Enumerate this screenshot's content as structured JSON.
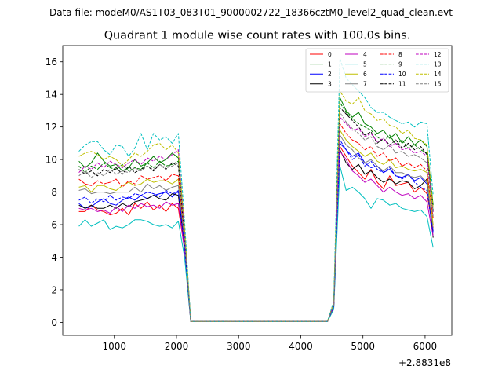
{
  "figure": {
    "suptitle": "Data file: modeM0/AS1T03_083T01_9000002722_18366cztM0_level2_quad_clean.evt"
  },
  "chart_data": {
    "type": "line",
    "title": "Quadrant 1 module wise count rates with 100.0s bins.",
    "xlabel": "",
    "ylabel": "",
    "x_offset_label": "+2.8831e8",
    "xlim": [
      170,
      6430
    ],
    "ylim": [
      -0.8,
      17.0
    ],
    "xticks": [
      1000,
      2000,
      3000,
      4000,
      5000,
      6000
    ],
    "xtick_labels": [
      "1000",
      "2000",
      "3000",
      "4000",
      "5000",
      "6000"
    ],
    "yticks": [
      0,
      2,
      4,
      6,
      8,
      10,
      12,
      14,
      16
    ],
    "ytick_labels": [
      "0",
      "2",
      "4",
      "6",
      "8",
      "10",
      "12",
      "14",
      "16"
    ],
    "grid": false,
    "legend_position": "top-right",
    "legend_columns": 4,
    "x": [
      430,
      530,
      630,
      730,
      830,
      930,
      1030,
      1130,
      1230,
      1330,
      1430,
      1530,
      1630,
      1730,
      1830,
      1930,
      2030,
      2130,
      2230,
      2330,
      2430,
      2530,
      2630,
      2730,
      2830,
      2930,
      3030,
      3130,
      3230,
      3330,
      3430,
      3530,
      3630,
      3730,
      3830,
      3930,
      4030,
      4130,
      4230,
      4330,
      4430,
      4530,
      4630,
      4730,
      4830,
      4930,
      5030,
      5130,
      5230,
      5330,
      5430,
      5530,
      5630,
      5730,
      5830,
      5930,
      6030,
      6130
    ],
    "series": [
      {
        "name": "0",
        "color": "#ff0000",
        "dash": "solid",
        "values": [
          6.8,
          6.8,
          7.2,
          6.9,
          6.8,
          6.6,
          6.7,
          7.0,
          6.6,
          7.3,
          7.0,
          7.4,
          6.9,
          7.2,
          6.8,
          7.3,
          7.0,
          4.5,
          0.05,
          0.05,
          0.05,
          0.05,
          0.05,
          0.05,
          0.05,
          0.05,
          0.05,
          0.05,
          0.05,
          0.05,
          0.05,
          0.05,
          0.05,
          0.05,
          0.05,
          0.05,
          0.05,
          0.05,
          0.05,
          0.05,
          0.05,
          1.0,
          10.8,
          10.2,
          9.6,
          9.2,
          8.8,
          9.4,
          8.6,
          8.2,
          9.0,
          8.4,
          8.5,
          8.6,
          8.0,
          8.3,
          7.9,
          5.8
        ]
      },
      {
        "name": "1",
        "color": "#008000",
        "dash": "solid",
        "values": [
          9.9,
          9.5,
          9.8,
          10.4,
          9.9,
          9.6,
          9.7,
          9.3,
          9.5,
          10.0,
          9.6,
          9.8,
          10.2,
          9.8,
          10.0,
          10.4,
          10.1,
          5.5,
          0.05,
          0.05,
          0.05,
          0.05,
          0.05,
          0.05,
          0.05,
          0.05,
          0.05,
          0.05,
          0.05,
          0.05,
          0.05,
          0.05,
          0.05,
          0.05,
          0.05,
          0.05,
          0.05,
          0.05,
          0.05,
          0.05,
          0.05,
          1.2,
          13.8,
          13.0,
          12.6,
          12.9,
          12.2,
          12.0,
          11.6,
          11.8,
          11.3,
          11.6,
          11.0,
          11.4,
          10.9,
          11.2,
          10.8,
          7.2
        ]
      },
      {
        "name": "2",
        "color": "#0000ff",
        "dash": "solid",
        "values": [
          7.3,
          7.0,
          7.1,
          7.4,
          7.6,
          7.3,
          7.2,
          7.5,
          7.7,
          7.5,
          7.8,
          7.6,
          7.8,
          7.9,
          8.0,
          7.7,
          8.1,
          4.8,
          0.05,
          0.05,
          0.05,
          0.05,
          0.05,
          0.05,
          0.05,
          0.05,
          0.05,
          0.05,
          0.05,
          0.05,
          0.05,
          0.05,
          0.05,
          0.05,
          0.05,
          0.05,
          0.05,
          0.05,
          0.05,
          0.05,
          0.05,
          1.0,
          11.0,
          10.6,
          10.2,
          10.4,
          9.8,
          9.5,
          9.6,
          9.2,
          9.4,
          9.0,
          8.9,
          9.1,
          8.7,
          8.9,
          8.5,
          5.6
        ]
      },
      {
        "name": "3",
        "color": "#000000",
        "dash": "solid",
        "values": [
          7.2,
          7.0,
          7.2,
          7.0,
          7.0,
          7.2,
          7.0,
          7.3,
          7.1,
          7.4,
          7.5,
          7.6,
          7.8,
          7.6,
          7.5,
          7.9,
          7.8,
          4.6,
          0.05,
          0.05,
          0.05,
          0.05,
          0.05,
          0.05,
          0.05,
          0.05,
          0.05,
          0.05,
          0.05,
          0.05,
          0.05,
          0.05,
          0.05,
          0.05,
          0.05,
          0.05,
          0.05,
          0.05,
          0.05,
          0.05,
          0.05,
          1.0,
          10.6,
          9.8,
          9.4,
          9.7,
          9.1,
          9.3,
          8.9,
          8.6,
          8.8,
          8.5,
          8.7,
          8.6,
          8.2,
          8.4,
          8.8,
          5.2
        ]
      },
      {
        "name": "4",
        "color": "#bf00bf",
        "dash": "solid",
        "values": [
          7.0,
          6.9,
          7.0,
          6.8,
          6.9,
          6.7,
          7.1,
          6.8,
          7.2,
          7.0,
          7.3,
          7.1,
          7.2,
          7.0,
          7.4,
          7.2,
          7.3,
          4.4,
          0.05,
          0.05,
          0.05,
          0.05,
          0.05,
          0.05,
          0.05,
          0.05,
          0.05,
          0.05,
          0.05,
          0.05,
          0.05,
          0.05,
          0.05,
          0.05,
          0.05,
          0.05,
          0.05,
          0.05,
          0.05,
          0.05,
          0.05,
          0.9,
          10.5,
          10.0,
          9.3,
          9.0,
          8.6,
          8.8,
          8.4,
          8.0,
          8.3,
          8.0,
          7.8,
          7.9,
          7.6,
          7.8,
          7.4,
          5.3
        ]
      },
      {
        "name": "5",
        "color": "#00bfbf",
        "dash": "solid",
        "values": [
          5.9,
          6.3,
          5.9,
          6.1,
          6.3,
          5.7,
          5.9,
          5.8,
          6.0,
          6.3,
          6.3,
          6.2,
          6.0,
          5.9,
          6.0,
          5.8,
          6.2,
          4.0,
          0.05,
          0.05,
          0.05,
          0.05,
          0.05,
          0.05,
          0.05,
          0.05,
          0.05,
          0.05,
          0.05,
          0.05,
          0.05,
          0.05,
          0.05,
          0.05,
          0.05,
          0.05,
          0.05,
          0.05,
          0.05,
          0.05,
          0.05,
          0.8,
          9.6,
          8.1,
          8.3,
          8.0,
          7.6,
          7.0,
          7.6,
          7.5,
          7.2,
          7.3,
          7.0,
          6.9,
          6.8,
          6.9,
          6.5,
          4.6
        ]
      },
      {
        "name": "6",
        "color": "#bfbf00",
        "dash": "solid",
        "values": [
          8.3,
          8.4,
          8.0,
          8.4,
          8.4,
          8.2,
          8.1,
          8.4,
          8.6,
          8.4,
          8.5,
          8.8,
          8.6,
          8.7,
          8.7,
          8.5,
          8.8,
          5.0,
          0.05,
          0.05,
          0.05,
          0.05,
          0.05,
          0.05,
          0.05,
          0.05,
          0.05,
          0.05,
          0.05,
          0.05,
          0.05,
          0.05,
          0.05,
          0.05,
          0.05,
          0.05,
          0.05,
          0.05,
          0.05,
          0.05,
          0.05,
          1.0,
          11.8,
          11.2,
          10.8,
          10.5,
          10.2,
          10.4,
          9.9,
          9.7,
          10.0,
          9.5,
          9.6,
          9.4,
          9.3,
          9.4,
          9.2,
          6.0
        ]
      },
      {
        "name": "7",
        "color": "#808080",
        "dash": "solid",
        "values": [
          8.1,
          8.2,
          7.9,
          8.0,
          8.0,
          7.9,
          8.0,
          8.0,
          8.0,
          8.3,
          8.0,
          8.5,
          8.2,
          8.4,
          8.1,
          8.3,
          8.4,
          4.9,
          0.05,
          0.05,
          0.05,
          0.05,
          0.05,
          0.05,
          0.05,
          0.05,
          0.05,
          0.05,
          0.05,
          0.05,
          0.05,
          0.05,
          0.05,
          0.05,
          0.05,
          0.05,
          0.05,
          0.05,
          0.05,
          0.05,
          0.05,
          1.0,
          11.5,
          10.9,
          10.6,
          10.1,
          9.8,
          10.0,
          9.6,
          9.3,
          9.6,
          9.2,
          9.2,
          9.0,
          8.9,
          9.0,
          8.6,
          5.7
        ]
      },
      {
        "name": "8",
        "color": "#ff0000",
        "dash": "dashed",
        "values": [
          8.8,
          8.5,
          8.4,
          8.7,
          8.5,
          8.6,
          8.8,
          8.3,
          8.7,
          8.5,
          9.0,
          8.8,
          8.9,
          9.0,
          8.7,
          9.1,
          9.0,
          5.2,
          0.05,
          0.05,
          0.05,
          0.05,
          0.05,
          0.05,
          0.05,
          0.05,
          0.05,
          0.05,
          0.05,
          0.05,
          0.05,
          0.05,
          0.05,
          0.05,
          0.05,
          0.05,
          0.05,
          0.05,
          0.05,
          0.05,
          0.05,
          1.1,
          12.2,
          11.6,
          11.2,
          11.0,
          10.6,
          10.8,
          10.2,
          10.4,
          9.9,
          10.1,
          9.6,
          9.8,
          9.5,
          9.7,
          9.3,
          6.4
        ]
      },
      {
        "name": "9",
        "color": "#008000",
        "dash": "dashed",
        "values": [
          9.6,
          9.2,
          9.6,
          9.4,
          9.8,
          9.5,
          9.4,
          9.7,
          9.3,
          9.5,
          9.4,
          9.8,
          9.5,
          9.9,
          9.6,
          9.7,
          9.9,
          5.4,
          0.05,
          0.05,
          0.05,
          0.05,
          0.05,
          0.05,
          0.05,
          0.05,
          0.05,
          0.05,
          0.05,
          0.05,
          0.05,
          0.05,
          0.05,
          0.05,
          0.05,
          0.05,
          0.05,
          0.05,
          0.05,
          0.05,
          0.05,
          1.2,
          13.5,
          12.9,
          12.5,
          12.2,
          12.0,
          11.8,
          11.4,
          11.1,
          11.5,
          10.9,
          11.2,
          10.7,
          10.9,
          10.6,
          10.4,
          6.9
        ]
      },
      {
        "name": "10",
        "color": "#0000ff",
        "dash": "dashed",
        "values": [
          7.5,
          7.7,
          7.3,
          7.6,
          7.4,
          7.8,
          7.5,
          7.7,
          7.6,
          7.9,
          7.8,
          8.0,
          7.9,
          7.7,
          8.1,
          7.9,
          8.0,
          4.7,
          0.05,
          0.05,
          0.05,
          0.05,
          0.05,
          0.05,
          0.05,
          0.05,
          0.05,
          0.05,
          0.05,
          0.05,
          0.05,
          0.05,
          0.05,
          0.05,
          0.05,
          0.05,
          0.05,
          0.05,
          0.05,
          0.05,
          0.05,
          1.0,
          11.2,
          10.6,
          10.0,
          10.3,
          9.6,
          9.9,
          9.4,
          9.2,
          9.5,
          9.0,
          8.8,
          9.1,
          8.6,
          8.3,
          8.1,
          5.5
        ]
      },
      {
        "name": "11",
        "color": "#000000",
        "dash": "dashed",
        "values": [
          9.4,
          9.1,
          9.3,
          9.0,
          9.4,
          9.2,
          9.5,
          9.1,
          9.6,
          9.2,
          9.4,
          9.6,
          9.3,
          9.7,
          9.4,
          9.8,
          9.6,
          5.3,
          0.05,
          0.05,
          0.05,
          0.05,
          0.05,
          0.05,
          0.05,
          0.05,
          0.05,
          0.05,
          0.05,
          0.05,
          0.05,
          0.05,
          0.05,
          0.05,
          0.05,
          0.05,
          0.05,
          0.05,
          0.05,
          0.05,
          0.05,
          1.1,
          13.2,
          12.8,
          12.4,
          12.0,
          11.5,
          11.7,
          11.0,
          11.3,
          10.9,
          11.2,
          10.7,
          11.0,
          10.6,
          10.8,
          10.3,
          6.8
        ]
      },
      {
        "name": "12",
        "color": "#bf00bf",
        "dash": "dashed",
        "values": [
          9.2,
          9.6,
          9.4,
          9.8,
          9.5,
          9.9,
          9.7,
          9.5,
          9.8,
          10.0,
          9.7,
          10.1,
          9.9,
          10.2,
          10.0,
          10.3,
          10.6,
          5.6,
          0.05,
          0.05,
          0.05,
          0.05,
          0.05,
          0.05,
          0.05,
          0.05,
          0.05,
          0.05,
          0.05,
          0.05,
          0.05,
          0.05,
          0.05,
          0.05,
          0.05,
          0.05,
          0.05,
          0.05,
          0.05,
          0.05,
          0.05,
          1.1,
          12.6,
          12.2,
          11.8,
          11.9,
          11.4,
          11.6,
          11.1,
          11.3,
          10.8,
          11.0,
          10.6,
          10.7,
          10.4,
          10.5,
          10.2,
          6.7
        ]
      },
      {
        "name": "13",
        "color": "#00bfbf",
        "dash": "dashed",
        "values": [
          10.5,
          10.9,
          11.1,
          11.1,
          10.6,
          10.3,
          10.9,
          10.8,
          10.2,
          10.7,
          11.6,
          10.6,
          11.6,
          11.2,
          11.4,
          11.0,
          11.6,
          6.2,
          0.05,
          0.05,
          0.05,
          0.05,
          0.05,
          0.05,
          0.05,
          0.05,
          0.05,
          0.05,
          0.05,
          0.05,
          0.05,
          0.05,
          0.05,
          0.05,
          0.05,
          0.05,
          0.05,
          0.05,
          0.05,
          0.05,
          0.05,
          1.3,
          16.2,
          15.0,
          14.6,
          14.2,
          13.8,
          13.2,
          12.9,
          12.9,
          12.6,
          12.4,
          12.2,
          12.3,
          12.0,
          12.3,
          12.2,
          7.8
        ]
      },
      {
        "name": "14",
        "color": "#bfbf00",
        "dash": "dashed",
        "values": [
          10.2,
          10.4,
          10.5,
          10.3,
          10.0,
          10.2,
          10.0,
          9.6,
          10.0,
          10.4,
          10.2,
          10.5,
          10.9,
          11.0,
          10.6,
          10.9,
          10.4,
          5.8,
          0.05,
          0.05,
          0.05,
          0.05,
          0.05,
          0.05,
          0.05,
          0.05,
          0.05,
          0.05,
          0.05,
          0.05,
          0.05,
          0.05,
          0.05,
          0.05,
          0.05,
          0.05,
          0.05,
          0.05,
          0.05,
          0.05,
          0.05,
          1.2,
          14.2,
          13.6,
          13.4,
          13.8,
          13.0,
          12.8,
          12.4,
          12.5,
          12.1,
          12.0,
          11.6,
          11.8,
          11.3,
          11.2,
          10.9,
          7.0
        ]
      },
      {
        "name": "15",
        "color": "#808080",
        "dash": "dashed",
        "values": [
          9.0,
          9.3,
          8.9,
          9.2,
          9.0,
          9.4,
          9.1,
          9.3,
          9.2,
          9.5,
          9.3,
          9.6,
          9.4,
          9.7,
          9.5,
          9.6,
          9.8,
          5.2,
          0.05,
          0.05,
          0.05,
          0.05,
          0.05,
          0.05,
          0.05,
          0.05,
          0.05,
          0.05,
          0.05,
          0.05,
          0.05,
          0.05,
          0.05,
          0.05,
          0.05,
          0.05,
          0.05,
          0.05,
          0.05,
          0.05,
          0.05,
          1.1,
          12.9,
          12.3,
          11.9,
          11.6,
          11.2,
          11.4,
          10.8,
          10.6,
          10.9,
          10.4,
          10.5,
          10.2,
          10.3,
          10.1,
          9.8,
          6.5
        ]
      }
    ]
  }
}
